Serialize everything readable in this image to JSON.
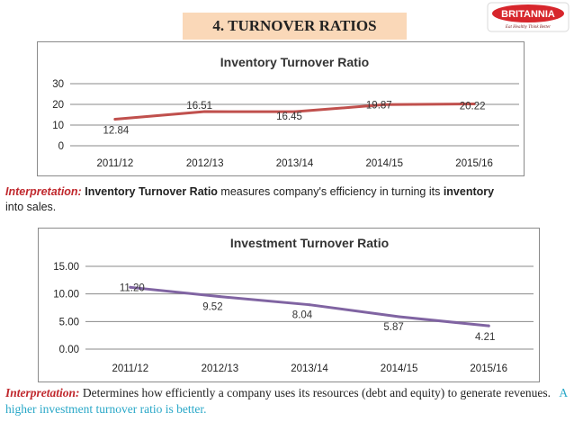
{
  "slide": {
    "title": "4. TURNOVER RATIOS",
    "logo_text": "BRITANNIA",
    "logo_tagline": "Eat Healthy Think Better"
  },
  "interpretation1": {
    "label": "Interpretation:",
    "term": "Inventory Turnover Ratio",
    "text_a": " measures company's efficiency in turning its ",
    "term2": "inventory",
    "text_b": " into sales."
  },
  "interpretation2": {
    "label": "Interpretation:",
    "text": " Determines how efficiently a company uses its resources (debt and equity) to generate revenues.",
    "highlight": "A higher investment turnover ratio is better."
  },
  "colors": {
    "series1": "#c0504d",
    "series2": "#8064a2",
    "grid": "#8a8a8a",
    "title_bg": "#fad8b8"
  },
  "chart_data": [
    {
      "type": "line",
      "title": "Inventory Turnover Ratio",
      "categories": [
        "2011/12",
        "2012/13",
        "2013/14",
        "2014/15",
        "2015/16"
      ],
      "values": [
        12.84,
        16.51,
        16.45,
        19.87,
        20.22
      ],
      "value_labels": [
        "12.84",
        "16.51",
        "16.45",
        "19.87",
        "20.22"
      ],
      "yticks": [
        "0",
        "10",
        "20",
        "30"
      ],
      "ylim": [
        0,
        30
      ],
      "xlabel": "",
      "ylabel": "",
      "grid": true,
      "legend": "none"
    },
    {
      "type": "line",
      "title": "Investment Turnover Ratio",
      "categories": [
        "2011/12",
        "2012/13",
        "2013/14",
        "2014/15",
        "2015/16"
      ],
      "values": [
        11.2,
        9.52,
        8.04,
        5.87,
        4.21
      ],
      "value_labels": [
        "11.20",
        "9.52",
        "8.04",
        "5.87",
        "4.21"
      ],
      "yticks": [
        "0.00",
        "5.00",
        "10.00",
        "15.00"
      ],
      "ylim": [
        0,
        15
      ],
      "xlabel": "",
      "ylabel": "",
      "grid": true,
      "legend": "none"
    }
  ]
}
